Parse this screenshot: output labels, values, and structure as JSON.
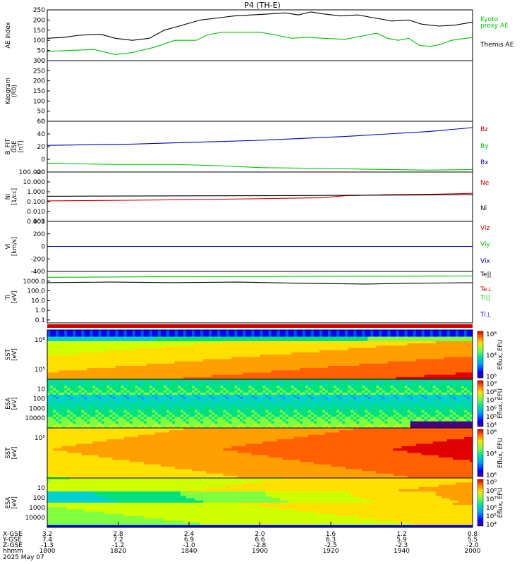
{
  "title": "P4 (TH-E)",
  "footer": {
    "row_labels": [
      "X-GSE",
      "Y-GSE",
      "Z-GSE",
      "hhmm",
      "2025 May 07"
    ],
    "columns": [
      {
        "x": "3.2",
        "y": "7.4",
        "z": "-1.3",
        "t": "1800"
      },
      {
        "x": "2.8",
        "y": "7.2",
        "z": "-1.2",
        "t": "1820"
      },
      {
        "x": "2.4",
        "y": "6.9",
        "z": "-1.0",
        "t": "1840"
      },
      {
        "x": "2.0",
        "y": "6.6",
        "z": "-2.8",
        "t": "1900"
      },
      {
        "x": "1.6",
        "y": "6.3",
        "z": "-2.5",
        "t": "1920"
      },
      {
        "x": "1.2",
        "y": "5.9",
        "z": "-2.3",
        "t": "1940"
      },
      {
        "x": "0.8",
        "y": "5.5",
        "z": "-2.0",
        "t": "2000"
      }
    ]
  },
  "colorbar": {
    "label": "Eflux, EFU",
    "sst_ticks": [
      "10⁸",
      "10⁴",
      "10⁶"
    ],
    "esa_ticks": [
      "10⁹",
      "10⁸",
      "10⁷",
      "10⁶",
      "10⁵",
      "10⁴"
    ]
  },
  "chart_data": [
    {
      "type": "line",
      "id": "ae",
      "ylabel": "AE index",
      "ylim": [
        0,
        250
      ],
      "yticks": [
        "0",
        "50",
        "100",
        "150",
        "200",
        "250"
      ],
      "x": [
        "1800",
        "1820",
        "1840",
        "1900",
        "1920",
        "1940",
        "2000"
      ],
      "series": [
        {
          "name": "Kyoto\nproxy AE",
          "color": "#00c000",
          "points": [
            [
              0,
              45
            ],
            [
              10,
              50
            ],
            [
              22,
              55
            ],
            [
              32,
              30
            ],
            [
              40,
              40
            ],
            [
              50,
              65
            ],
            [
              60,
              100
            ],
            [
              70,
              100
            ],
            [
              75,
              125
            ],
            [
              82,
              140
            ],
            [
              90,
              140
            ],
            [
              100,
              140
            ],
            [
              108,
              125
            ],
            [
              115,
              110
            ],
            [
              122,
              115
            ],
            [
              130,
              110
            ],
            [
              140,
              105
            ],
            [
              150,
              125
            ],
            [
              155,
              135
            ],
            [
              160,
              110
            ],
            [
              165,
              100
            ],
            [
              170,
              110
            ],
            [
              175,
              75
            ],
            [
              180,
              70
            ],
            [
              185,
              80
            ],
            [
              190,
              100
            ],
            [
              200,
              115
            ]
          ]
        },
        {
          "name": "Themis AE",
          "color": "#000000",
          "points": [
            [
              0,
              110
            ],
            [
              8,
              115
            ],
            [
              15,
              125
            ],
            [
              25,
              130
            ],
            [
              32,
              110
            ],
            [
              40,
              100
            ],
            [
              48,
              110
            ],
            [
              55,
              150
            ],
            [
              62,
              170
            ],
            [
              72,
              200
            ],
            [
              80,
              210
            ],
            [
              88,
              220
            ],
            [
              96,
              225
            ],
            [
              104,
              230
            ],
            [
              112,
              235
            ],
            [
              118,
              225
            ],
            [
              124,
              240
            ],
            [
              130,
              230
            ],
            [
              138,
              220
            ],
            [
              146,
              225
            ],
            [
              154,
              210
            ],
            [
              162,
              195
            ],
            [
              170,
              200
            ],
            [
              176,
              180
            ],
            [
              184,
              170
            ],
            [
              192,
              175
            ],
            [
              200,
              190
            ]
          ]
        }
      ]
    },
    {
      "type": "line",
      "id": "keogram",
      "ylabel": "Keogram",
      "ylabel2": "(R0)",
      "ylim": [
        0,
        300
      ],
      "yticks": [
        "0",
        "50",
        "100",
        "150",
        "200",
        "250",
        "300"
      ],
      "series": []
    },
    {
      "type": "line",
      "id": "b",
      "ylabel": "B_FIT",
      "ylabel2": "GSE",
      "ylabel3": "[nT]",
      "ylim": [
        -20,
        60
      ],
      "yticks": [
        "-20",
        "0",
        "20",
        "40",
        "60"
      ],
      "series": [
        {
          "name": "Bz",
          "color": "#d00000",
          "points": []
        },
        {
          "name": "By",
          "color": "#00c000",
          "points": [
            [
              0,
              -6
            ],
            [
              30,
              -8
            ],
            [
              60,
              -8
            ],
            [
              80,
              -10
            ],
            [
              100,
              -13
            ],
            [
              120,
              -14
            ],
            [
              140,
              -15
            ],
            [
              160,
              -16
            ],
            [
              180,
              -17
            ],
            [
              200,
              -16
            ]
          ]
        },
        {
          "name": "Bx",
          "color": "#0000c0",
          "points": [
            [
              0,
              22
            ],
            [
              20,
              23
            ],
            [
              40,
              24
            ],
            [
              60,
              26
            ],
            [
              80,
              28
            ],
            [
              100,
              30
            ],
            [
              120,
              33
            ],
            [
              140,
              36
            ],
            [
              160,
              40
            ],
            [
              180,
              44
            ],
            [
              200,
              50
            ]
          ]
        }
      ]
    },
    {
      "type": "line",
      "id": "ni",
      "ylabel": "Ni",
      "ylabel2": "[1/cc]",
      "ylim": [
        0.001,
        100
      ],
      "log": true,
      "yticks": [
        "0.001",
        "0.010",
        "0.100",
        "1.000",
        "10.000",
        "100.000"
      ],
      "series": [
        {
          "name": "Ne",
          "color": "#d00000",
          "points": [
            [
              0,
              0.12
            ],
            [
              40,
              0.14
            ],
            [
              70,
              0.16
            ],
            [
              100,
              0.2
            ],
            [
              130,
              0.25
            ],
            [
              140,
              0.4
            ],
            [
              160,
              0.5
            ],
            [
              180,
              0.55
            ],
            [
              200,
              0.7
            ]
          ]
        },
        {
          "name": "Ni",
          "color": "#000000",
          "points": [
            [
              0,
              0.35
            ],
            [
              50,
              0.38
            ],
            [
              100,
              0.4
            ],
            [
              150,
              0.45
            ],
            [
              200,
              0.5
            ]
          ]
        }
      ]
    },
    {
      "type": "line",
      "id": "vi",
      "ylabel": "Vi",
      "ylabel2": "[km/s]",
      "ylim": [
        -400,
        400
      ],
      "yticks": [
        "-400",
        "-200",
        "0",
        "200",
        "400"
      ],
      "series": [
        {
          "name": "Viz",
          "color": "#d00000",
          "points": [
            [
              0,
              0
            ],
            [
              200,
              0
            ]
          ]
        },
        {
          "name": "Viy",
          "color": "#00c000",
          "points": [
            [
              0,
              0
            ],
            [
              200,
              0
            ]
          ]
        },
        {
          "name": "Vix",
          "color": "#0000c0",
          "points": [
            [
              0,
              0
            ],
            [
              200,
              0
            ]
          ]
        }
      ]
    },
    {
      "type": "line",
      "id": "ti",
      "ylabel": "Ti",
      "ylabel2": "[eV]",
      "ylim": [
        0.05,
        10000
      ],
      "log": true,
      "yticks": [
        "0.1",
        "1.0",
        "10.0",
        "100.0",
        "1000.0"
      ],
      "series": [
        {
          "name": "Te||",
          "color": "#000000",
          "points": []
        },
        {
          "name": "Te⊥",
          "color": "#d00000",
          "points": []
        },
        {
          "name": "Ti||",
          "color": "#00c000",
          "points": [
            [
              0,
              2500
            ],
            [
              50,
              2800
            ],
            [
              100,
              3000
            ],
            [
              150,
              3200
            ],
            [
              200,
              3400
            ]
          ]
        },
        {
          "name": "Ti⊥",
          "color": "#0000c0",
          "points": []
        },
        {
          "name": "Ti",
          "color": "#000000",
          "points": [
            [
              0,
              700
            ],
            [
              30,
              800
            ],
            [
              60,
              700
            ],
            [
              90,
              800
            ],
            [
              120,
              600
            ],
            [
              150,
              500
            ],
            [
              170,
              600
            ],
            [
              200,
              700
            ]
          ]
        }
      ]
    },
    {
      "type": "heatmap",
      "id": "sst_i",
      "ylabel": "SST",
      "ylabel2": "[eV]",
      "yticks": [
        "10⁶",
        "10⁵"
      ]
    },
    {
      "type": "heatmap",
      "id": "esa_i",
      "ylabel": "ESA",
      "ylabel2": "[eV]",
      "yticks": [
        "10",
        "100",
        "1000",
        "10000"
      ]
    },
    {
      "type": "heatmap",
      "id": "sst_e",
      "ylabel": "SST",
      "ylabel2": "[eV]",
      "yticks": [
        "10⁵"
      ]
    },
    {
      "type": "heatmap",
      "id": "esa_e",
      "ylabel": "ESA",
      "ylabel2": "[eV]",
      "yticks": [
        "10",
        "100",
        "1000",
        "10000"
      ]
    }
  ]
}
